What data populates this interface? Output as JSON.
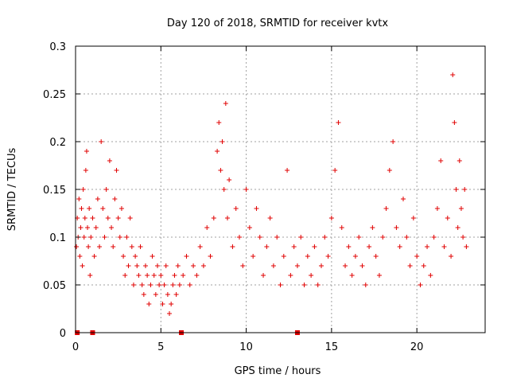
{
  "chart_data": {
    "type": "scatter",
    "title": "Day 120 of 2018, SRMTID for receiver kvtx",
    "xlabel": "GPS time / hours",
    "ylabel": "SRMTID / TECUs",
    "xlim": [
      0,
      24
    ],
    "ylim": [
      0,
      0.3
    ],
    "grid": true,
    "x_ticks": [
      0,
      5,
      10,
      15,
      20
    ],
    "x_tick_labels": [
      "0",
      "5",
      "10",
      "15",
      "20"
    ],
    "y_ticks": [
      0,
      0.05,
      0.1,
      0.15,
      0.2,
      0.25,
      0.3
    ],
    "y_tick_labels": [
      "0",
      "0.05",
      "0.1",
      "0.15",
      "0.2",
      "0.25",
      "0.3"
    ],
    "marker": "plus",
    "color": "#e00000",
    "series": [
      {
        "name": "SRMTID",
        "points": [
          [
            0.05,
            0.09
          ],
          [
            0.1,
            0.12
          ],
          [
            0.15,
            0.1
          ],
          [
            0.2,
            0.14
          ],
          [
            0.25,
            0.08
          ],
          [
            0.3,
            0.11
          ],
          [
            0.35,
            0.13
          ],
          [
            0.4,
            0.07
          ],
          [
            0.45,
            0.15
          ],
          [
            0.5,
            0.1
          ],
          [
            0.55,
            0.12
          ],
          [
            0.6,
            0.17
          ],
          [
            0.65,
            0.19
          ],
          [
            0.7,
            0.11
          ],
          [
            0.75,
            0.09
          ],
          [
            0.8,
            0.13
          ],
          [
            0.85,
            0.06
          ],
          [
            0.9,
            0.1
          ],
          [
            1.0,
            0.12
          ],
          [
            1.1,
            0.08
          ],
          [
            1.2,
            0.11
          ],
          [
            1.3,
            0.14
          ],
          [
            1.4,
            0.09
          ],
          [
            1.5,
            0.2
          ],
          [
            1.6,
            0.13
          ],
          [
            1.7,
            0.1
          ],
          [
            1.8,
            0.15
          ],
          [
            1.9,
            0.12
          ],
          [
            2.0,
            0.18
          ],
          [
            2.1,
            0.11
          ],
          [
            2.2,
            0.09
          ],
          [
            2.3,
            0.14
          ],
          [
            2.4,
            0.17
          ],
          [
            2.5,
            0.12
          ],
          [
            2.6,
            0.1
          ],
          [
            2.7,
            0.13
          ],
          [
            2.8,
            0.08
          ],
          [
            2.9,
            0.06
          ],
          [
            3.0,
            0.1
          ],
          [
            3.1,
            0.07
          ],
          [
            3.2,
            0.12
          ],
          [
            3.3,
            0.09
          ],
          [
            3.4,
            0.05
          ],
          [
            3.5,
            0.08
          ],
          [
            3.6,
            0.07
          ],
          [
            3.7,
            0.06
          ],
          [
            3.8,
            0.09
          ],
          [
            3.9,
            0.05
          ],
          [
            4.0,
            0.04
          ],
          [
            4.1,
            0.07
          ],
          [
            4.2,
            0.06
          ],
          [
            4.3,
            0.03
          ],
          [
            4.4,
            0.05
          ],
          [
            4.5,
            0.08
          ],
          [
            4.6,
            0.06
          ],
          [
            4.7,
            0.04
          ],
          [
            4.8,
            0.07
          ],
          [
            4.9,
            0.05
          ],
          [
            5.0,
            0.06
          ],
          [
            5.1,
            0.03
          ],
          [
            5.2,
            0.05
          ],
          [
            5.3,
            0.07
          ],
          [
            5.4,
            0.04
          ],
          [
            5.5,
            0.02
          ],
          [
            5.6,
            0.03
          ],
          [
            5.7,
            0.05
          ],
          [
            5.8,
            0.06
          ],
          [
            5.9,
            0.04
          ],
          [
            6.0,
            0.07
          ],
          [
            6.1,
            0.05
          ],
          [
            6.3,
            0.06
          ],
          [
            6.5,
            0.08
          ],
          [
            6.7,
            0.05
          ],
          [
            6.9,
            0.07
          ],
          [
            7.1,
            0.06
          ],
          [
            7.3,
            0.09
          ],
          [
            7.5,
            0.07
          ],
          [
            7.7,
            0.11
          ],
          [
            7.9,
            0.08
          ],
          [
            8.1,
            0.12
          ],
          [
            8.3,
            0.19
          ],
          [
            8.4,
            0.22
          ],
          [
            8.5,
            0.17
          ],
          [
            8.6,
            0.2
          ],
          [
            8.7,
            0.15
          ],
          [
            8.8,
            0.24
          ],
          [
            8.9,
            0.12
          ],
          [
            9.0,
            0.16
          ],
          [
            9.2,
            0.09
          ],
          [
            9.4,
            0.13
          ],
          [
            9.6,
            0.1
          ],
          [
            9.8,
            0.07
          ],
          [
            10.0,
            0.15
          ],
          [
            10.2,
            0.11
          ],
          [
            10.4,
            0.08
          ],
          [
            10.6,
            0.13
          ],
          [
            10.8,
            0.1
          ],
          [
            11.0,
            0.06
          ],
          [
            11.2,
            0.09
          ],
          [
            11.4,
            0.12
          ],
          [
            11.6,
            0.07
          ],
          [
            11.8,
            0.1
          ],
          [
            12.0,
            0.05
          ],
          [
            12.2,
            0.08
          ],
          [
            12.4,
            0.17
          ],
          [
            12.6,
            0.06
          ],
          [
            12.8,
            0.09
          ],
          [
            13.0,
            0.07
          ],
          [
            13.2,
            0.1
          ],
          [
            13.4,
            0.05
          ],
          [
            13.6,
            0.08
          ],
          [
            13.8,
            0.06
          ],
          [
            14.0,
            0.09
          ],
          [
            14.2,
            0.05
          ],
          [
            14.4,
            0.07
          ],
          [
            14.6,
            0.1
          ],
          [
            14.8,
            0.08
          ],
          [
            15.0,
            0.12
          ],
          [
            15.2,
            0.17
          ],
          [
            15.4,
            0.22
          ],
          [
            15.6,
            0.11
          ],
          [
            15.8,
            0.07
          ],
          [
            16.0,
            0.09
          ],
          [
            16.2,
            0.06
          ],
          [
            16.4,
            0.08
          ],
          [
            16.6,
            0.1
          ],
          [
            16.8,
            0.07
          ],
          [
            17.0,
            0.05
          ],
          [
            17.2,
            0.09
          ],
          [
            17.4,
            0.11
          ],
          [
            17.6,
            0.08
          ],
          [
            17.8,
            0.06
          ],
          [
            18.0,
            0.1
          ],
          [
            18.2,
            0.13
          ],
          [
            18.4,
            0.17
          ],
          [
            18.6,
            0.2
          ],
          [
            18.8,
            0.11
          ],
          [
            19.0,
            0.09
          ],
          [
            19.2,
            0.14
          ],
          [
            19.4,
            0.1
          ],
          [
            19.6,
            0.07
          ],
          [
            19.8,
            0.12
          ],
          [
            20.0,
            0.08
          ],
          [
            20.2,
            0.05
          ],
          [
            20.4,
            0.07
          ],
          [
            20.6,
            0.09
          ],
          [
            20.8,
            0.06
          ],
          [
            21.0,
            0.1
          ],
          [
            21.2,
            0.13
          ],
          [
            21.4,
            0.18
          ],
          [
            21.6,
            0.09
          ],
          [
            21.8,
            0.12
          ],
          [
            22.0,
            0.08
          ],
          [
            22.1,
            0.27
          ],
          [
            22.2,
            0.22
          ],
          [
            22.3,
            0.15
          ],
          [
            22.4,
            0.11
          ],
          [
            22.5,
            0.18
          ],
          [
            22.6,
            0.13
          ],
          [
            22.7,
            0.1
          ],
          [
            22.8,
            0.15
          ],
          [
            22.9,
            0.09
          ]
        ]
      }
    ],
    "axis_markers": [
      0.1,
      1.0,
      6.2,
      13.0
    ]
  }
}
